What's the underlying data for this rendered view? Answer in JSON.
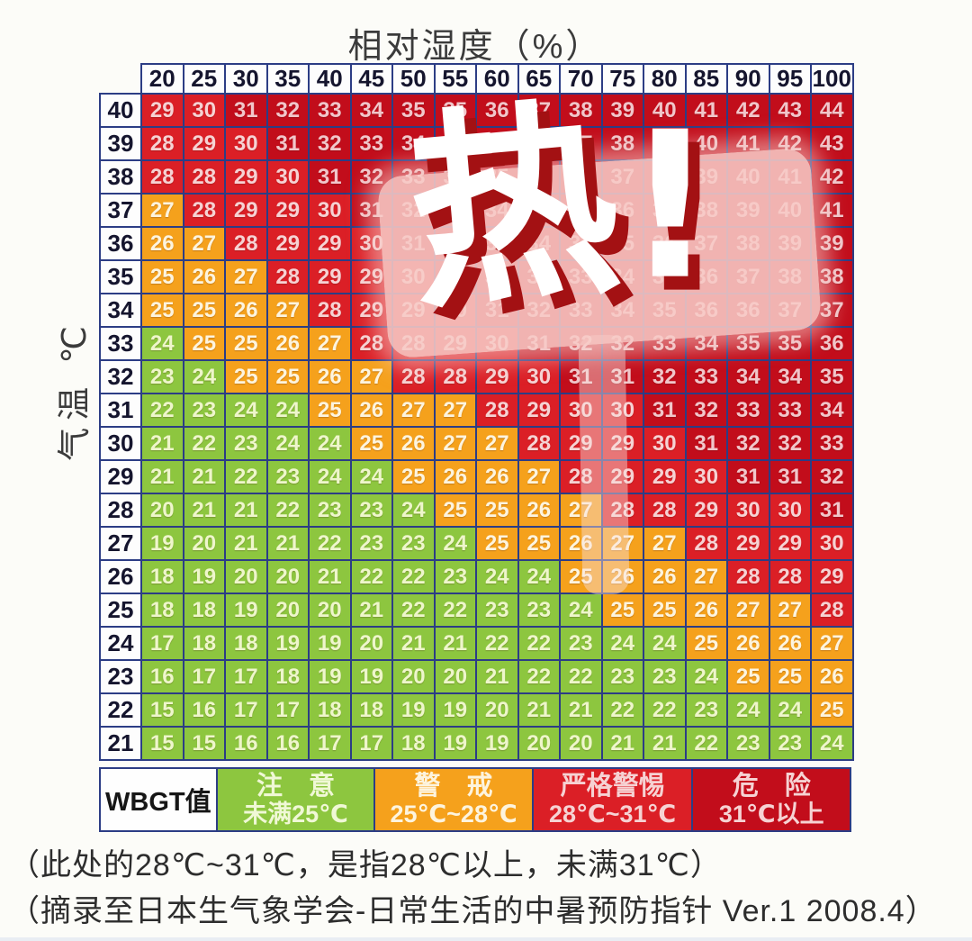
{
  "title": "相对湿度（%）",
  "y_axis_label": "气温 ℃",
  "watermark": {
    "char": "热",
    "exclaim": "!"
  },
  "legend": {
    "header": "WBGT值",
    "items": [
      {
        "name": "注　意",
        "range": "未满25℃",
        "color": "#8dc63f",
        "text_class": "lg-green"
      },
      {
        "name": "警　戒",
        "range": "25℃~28℃",
        "color": "#f5a11c",
        "text_class": "lg-orange"
      },
      {
        "name": "严格警惕",
        "range": "28℃~31℃",
        "color": "#db1f26",
        "text_class": "lg-red"
      },
      {
        "name": "危　险",
        "range": "31℃以上",
        "color": "#c20d1b",
        "text_class": "lg-red"
      }
    ]
  },
  "notes": [
    "（此处的28℃~31℃，是指28℃以上，未满31℃）",
    "（摘录至日本生气象学会-日常生活的中暑预防指针 Ver.1 2008.4）"
  ],
  "chart_data": {
    "type": "heatmap",
    "title": "相对湿度（%）",
    "xlabel": "相对湿度 (%)",
    "ylabel": "气温 ℃",
    "x_humidity_percent": [
      20,
      25,
      30,
      35,
      40,
      45,
      50,
      55,
      60,
      65,
      70,
      75,
      80,
      85,
      90,
      95,
      100
    ],
    "y_temperature_c": [
      40,
      39,
      38,
      37,
      36,
      35,
      34,
      33,
      32,
      31,
      30,
      29,
      28,
      27,
      26,
      25,
      24,
      23,
      22,
      21
    ],
    "values": [
      [
        29,
        30,
        31,
        32,
        33,
        34,
        35,
        35,
        36,
        37,
        38,
        39,
        40,
        41,
        42,
        43,
        44
      ],
      [
        28,
        29,
        30,
        31,
        32,
        33,
        34,
        35,
        35,
        36,
        37,
        38,
        39,
        40,
        41,
        42,
        43
      ],
      [
        28,
        28,
        29,
        30,
        31,
        32,
        33,
        34,
        35,
        35,
        36,
        37,
        38,
        39,
        40,
        41,
        42
      ],
      [
        27,
        28,
        29,
        29,
        30,
        31,
        32,
        33,
        34,
        35,
        35,
        36,
        37,
        38,
        39,
        40,
        41
      ],
      [
        26,
        27,
        28,
        29,
        29,
        30,
        31,
        32,
        33,
        34,
        34,
        35,
        36,
        37,
        38,
        39,
        39
      ],
      [
        25,
        26,
        27,
        28,
        29,
        29,
        30,
        31,
        32,
        33,
        33,
        34,
        35,
        36,
        37,
        38,
        38
      ],
      [
        25,
        25,
        26,
        27,
        28,
        29,
        29,
        30,
        31,
        32,
        33,
        34,
        35,
        36,
        36,
        37,
        37
      ],
      [
        24,
        25,
        25,
        26,
        27,
        28,
        28,
        29,
        30,
        31,
        32,
        32,
        33,
        34,
        35,
        35,
        36
      ],
      [
        23,
        24,
        25,
        25,
        26,
        27,
        28,
        28,
        29,
        30,
        31,
        31,
        32,
        33,
        34,
        34,
        35
      ],
      [
        22,
        23,
        24,
        24,
        25,
        26,
        27,
        27,
        28,
        29,
        30,
        30,
        31,
        32,
        33,
        33,
        34
      ],
      [
        21,
        22,
        23,
        24,
        24,
        25,
        26,
        27,
        27,
        28,
        29,
        29,
        30,
        31,
        32,
        32,
        33
      ],
      [
        21,
        21,
        22,
        23,
        24,
        24,
        25,
        26,
        26,
        27,
        28,
        29,
        29,
        30,
        31,
        31,
        32
      ],
      [
        20,
        21,
        21,
        22,
        23,
        23,
        24,
        25,
        25,
        26,
        27,
        28,
        28,
        29,
        30,
        30,
        31
      ],
      [
        19,
        20,
        21,
        21,
        22,
        23,
        23,
        24,
        25,
        25,
        26,
        27,
        27,
        28,
        29,
        29,
        30
      ],
      [
        18,
        19,
        20,
        20,
        21,
        22,
        22,
        23,
        24,
        24,
        25,
        26,
        26,
        27,
        28,
        28,
        29
      ],
      [
        18,
        18,
        19,
        20,
        20,
        21,
        22,
        22,
        23,
        23,
        24,
        25,
        25,
        26,
        27,
        27,
        28
      ],
      [
        17,
        18,
        18,
        19,
        19,
        20,
        21,
        21,
        22,
        22,
        23,
        24,
        24,
        25,
        26,
        26,
        27
      ],
      [
        16,
        17,
        17,
        18,
        19,
        19,
        20,
        20,
        21,
        22,
        22,
        23,
        23,
        24,
        25,
        25,
        26
      ],
      [
        15,
        16,
        17,
        17,
        18,
        18,
        19,
        19,
        20,
        21,
        21,
        22,
        22,
        23,
        24,
        24,
        25
      ],
      [
        15,
        15,
        16,
        16,
        17,
        17,
        18,
        19,
        19,
        20,
        20,
        21,
        21,
        22,
        23,
        23,
        24
      ]
    ],
    "color_thresholds": {
      "green_below": 25,
      "orange_range": [
        25,
        27
      ],
      "red_range": [
        28,
        30
      ],
      "dark_red_from": 31
    },
    "legend_position": "bottom",
    "grid": true
  }
}
